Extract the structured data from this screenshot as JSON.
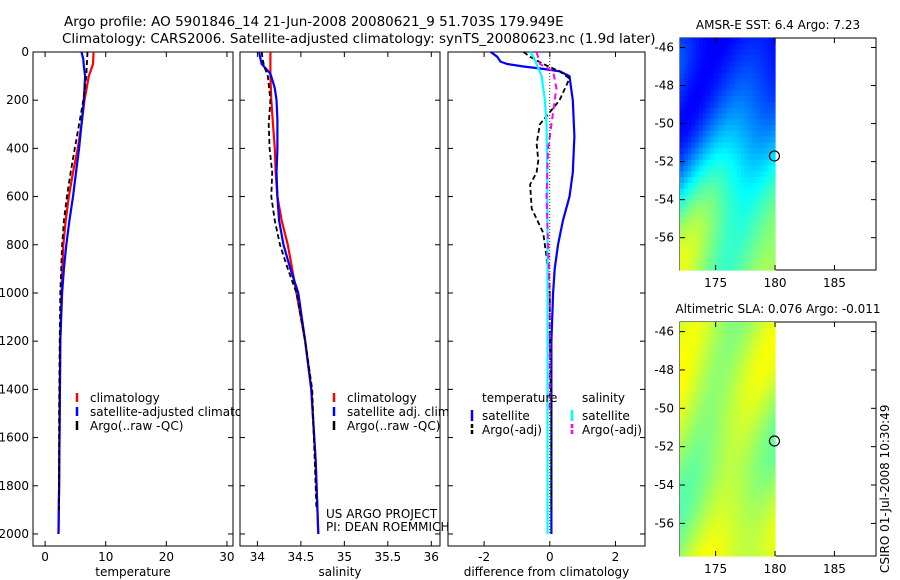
{
  "header": {
    "line1": "Argo profile: AO 5901846_14 21-Jun-2008 20080621_9 51.703S 179.949E",
    "line2": "Climatology: CARS2006. Satellite-adjusted climatology: synTS_20080623.nc (1.9d later)"
  },
  "credits": {
    "project": "US ARGO PROJECT",
    "pi": "PI: DEAN ROEMMICH",
    "stamp": "CSIRO 01-Jul-2008 10:30:49"
  },
  "colors": {
    "clim": "#ff0000",
    "sat": "#0000ff",
    "argo": "#000000",
    "sal_sat": "#00ffff",
    "sal_argo": "#ff00ff"
  },
  "chart_data": [
    {
      "id": "temperature",
      "type": "line",
      "xlabel": "temperature",
      "ylabel": "",
      "xlim": [
        -2,
        31
      ],
      "ylim": [
        2050,
        0
      ],
      "xticks": [
        0,
        10,
        20,
        30
      ],
      "yticks": [
        0,
        200,
        400,
        600,
        800,
        1000,
        1200,
        1400,
        1600,
        1800,
        2000
      ],
      "y_reversed": true,
      "legend": {
        "placement": "bottom-left",
        "entries": [
          {
            "label": "climatology",
            "color": "#ff0000"
          },
          {
            "label": "satellite-adjusted climatology",
            "color": "#0000ff"
          },
          {
            "label": "Argo(..raw -QC)",
            "color": "#000000"
          }
        ]
      },
      "series": [
        {
          "name": "climatology",
          "color": "#ff0000",
          "dash": "none",
          "width": 2.2,
          "x": [
            8.0,
            7.9,
            7.2,
            6.5,
            6.0,
            5.4,
            4.6,
            3.9,
            3.4,
            3.0,
            2.7,
            2.5,
            2.4,
            2.3,
            2.2
          ],
          "y": [
            0,
            50,
            100,
            200,
            300,
            400,
            500,
            600,
            700,
            800,
            1000,
            1200,
            1500,
            1800,
            2000
          ]
        },
        {
          "name": "satellite-adjusted climatology",
          "color": "#0000ff",
          "dash": "none",
          "width": 2.2,
          "x": [
            6.0,
            6.1,
            6.3,
            6.4,
            6.6,
            6.4,
            6.0,
            5.6,
            5.1,
            4.6,
            4.0,
            3.5,
            3.1,
            2.8,
            2.5,
            2.4,
            2.3,
            2.2
          ],
          "y": [
            0,
            10,
            30,
            60,
            100,
            200,
            300,
            400,
            500,
            600,
            700,
            800,
            900,
            1000,
            1200,
            1500,
            1800,
            2000
          ]
        },
        {
          "name": "Argo(..raw -QC)",
          "color": "#000000",
          "dash": "5,3",
          "width": 1.8,
          "x": [
            7.0,
            6.9,
            6.8,
            6.3,
            5.6,
            4.9,
            4.2,
            3.6,
            3.1,
            2.8,
            2.5,
            2.4,
            2.3,
            2.3
          ],
          "y": [
            0,
            50,
            100,
            200,
            300,
            400,
            500,
            600,
            700,
            800,
            1000,
            1200,
            1500,
            1900
          ]
        }
      ]
    },
    {
      "id": "salinity",
      "type": "line",
      "xlabel": "salinity",
      "ylabel": "",
      "xlim": [
        33.8,
        36.1
      ],
      "ylim": [
        2050,
        0
      ],
      "xticks": [
        34,
        34.5,
        35,
        35.5,
        36
      ],
      "yticks": [],
      "y_reversed": true,
      "legend": {
        "placement": "bottom-left",
        "entries": [
          {
            "label": "climatology",
            "color": "#ff0000"
          },
          {
            "label": "satellite adj. clim.",
            "color": "#0000ff"
          },
          {
            "label": "Argo(..raw -QC)",
            "color": "#000000"
          }
        ]
      },
      "series": [
        {
          "name": "climatology",
          "color": "#ff0000",
          "dash": "none",
          "width": 2.2,
          "x": [
            34.15,
            34.15,
            34.16,
            34.18,
            34.2,
            34.21,
            34.23,
            34.28,
            34.35,
            34.45,
            34.55,
            34.62,
            34.67,
            34.7
          ],
          "y": [
            0,
            100,
            200,
            300,
            400,
            500,
            600,
            700,
            800,
            1000,
            1200,
            1400,
            1700,
            2000
          ]
        },
        {
          "name": "satellite adj. clim.",
          "color": "#0000ff",
          "dash": "none",
          "width": 2.2,
          "x": [
            34.02,
            34.03,
            34.05,
            34.1,
            34.15,
            34.2,
            34.22,
            34.23,
            34.23,
            34.22,
            34.23,
            34.25,
            34.3,
            34.38,
            34.47,
            34.55,
            34.62,
            34.67,
            34.7
          ],
          "y": [
            0,
            20,
            50,
            70,
            90,
            150,
            200,
            280,
            400,
            500,
            600,
            700,
            800,
            900,
            1000,
            1200,
            1400,
            1700,
            2000
          ]
        },
        {
          "name": "Argo(..raw -QC)",
          "color": "#000000",
          "dash": "5,3",
          "width": 1.8,
          "x": [
            34.05,
            34.06,
            34.08,
            34.12,
            34.15,
            34.13,
            34.14,
            34.17,
            34.16,
            34.2,
            34.26,
            34.35,
            34.45,
            34.55,
            34.63,
            34.68
          ],
          "y": [
            0,
            30,
            60,
            100,
            200,
            300,
            400,
            500,
            600,
            700,
            800,
            900,
            1000,
            1200,
            1400,
            1900
          ]
        }
      ]
    },
    {
      "id": "difference",
      "type": "line",
      "xlabel": "difference from climatology",
      "ylabel": "",
      "xlim": [
        -3.1,
        2.9
      ],
      "ylim": [
        2050,
        0
      ],
      "xticks": [
        -2,
        0,
        2
      ],
      "yticks": [],
      "y_reversed": true,
      "zero_line": 0,
      "legend": {
        "placement": "bottom-center",
        "columns": [
          {
            "heading": "temperature",
            "entries": [
              {
                "label": "satellite",
                "color": "#0000ff",
                "dash": "none"
              },
              {
                "label": "Argo(-adj)",
                "color": "#000000",
                "dash": "5,3"
              }
            ]
          },
          {
            "heading": "salinity",
            "entries": [
              {
                "label": "satellite",
                "color": "#00ffff",
                "dash": "none"
              },
              {
                "label": "Argo(-adj)",
                "color": "#ff00ff",
                "dash": "5,3"
              }
            ]
          }
        ]
      },
      "series": [
        {
          "name": "temperature satellite",
          "color": "#0000ff",
          "dash": "none",
          "width": 2.2,
          "x": [
            -1.8,
            -1.6,
            -1.5,
            -1.3,
            -0.8,
            -0.2,
            0.3,
            0.6,
            0.65,
            0.7,
            0.75,
            0.7,
            0.6,
            0.4,
            0.25,
            0.15,
            0.1,
            0.05,
            0.05,
            0.05
          ],
          "y": [
            0,
            20,
            40,
            50,
            60,
            70,
            80,
            100,
            150,
            200,
            350,
            500,
            600,
            700,
            800,
            900,
            1000,
            1200,
            1600,
            2000
          ]
        },
        {
          "name": "temperature Argo(-adj)",
          "color": "#000000",
          "dash": "5,3",
          "width": 1.8,
          "x": [
            -0.8,
            -0.6,
            -0.2,
            0.3,
            0.6,
            0.3,
            -0.3,
            -0.4,
            -0.35,
            -0.4,
            -0.6,
            -0.55,
            -0.2,
            -0.1,
            0.0,
            0.0,
            0.05,
            0.05
          ],
          "y": [
            0,
            20,
            50,
            80,
            110,
            200,
            300,
            380,
            450,
            500,
            550,
            650,
            750,
            850,
            1000,
            1200,
            1500,
            1900
          ]
        },
        {
          "name": "salinity satellite",
          "color": "#00ffff",
          "dash": "none",
          "width": 2.2,
          "x": [
            -0.6,
            -0.5,
            -0.4,
            -0.25,
            -0.15,
            -0.1,
            -0.08,
            -0.07,
            -0.07,
            -0.07
          ],
          "y": [
            0,
            20,
            50,
            100,
            200,
            300,
            500,
            800,
            1200,
            2000
          ]
        },
        {
          "name": "salinity Argo(-adj)",
          "color": "#ff00ff",
          "dash": "6,4",
          "width": 2.0,
          "x": [
            -0.4,
            -0.3,
            0.1,
            0.2,
            0.1,
            -0.05,
            -0.1,
            -0.05,
            0.0,
            0.0
          ],
          "y": [
            0,
            50,
            80,
            150,
            250,
            400,
            600,
            800,
            1000,
            1500
          ]
        },
        {
          "name": "zero reference",
          "color": "#000000",
          "dash": "1,2",
          "width": 0.8,
          "x": [
            0,
            0
          ],
          "y": [
            0,
            2000
          ]
        }
      ]
    },
    {
      "id": "sst-map",
      "type": "heatmap",
      "title": "AMSR-E SST: 6.4 Argo: 7.23",
      "xlim": [
        172,
        188.5
      ],
      "ylim": [
        -57.7,
        -45.5
      ],
      "xticks": [
        175,
        180,
        185
      ],
      "yticks": [
        -46,
        -48,
        -50,
        -52,
        -54,
        -56
      ],
      "xticklabels": [
        "175",
        "180",
        "185"
      ],
      "yticklabels": [
        "-46",
        "-48",
        "-50",
        "-52",
        "-54",
        "-56"
      ],
      "data_xlim": [
        172,
        180
      ],
      "marker": {
        "lon": 179.949,
        "lat": -51.703
      },
      "seed": 11,
      "value_range": [
        0.15,
        0.5
      ],
      "trend": [
        0.05,
        -0.4
      ]
    },
    {
      "id": "sla-map",
      "type": "heatmap",
      "title": "Altimetric SLA: 0.076 Argo: -0.011",
      "xlim": [
        172,
        188.5
      ],
      "ylim": [
        -57.7,
        -45.5
      ],
      "xticks": [
        175,
        180,
        185
      ],
      "yticks": [
        -46,
        -48,
        -50,
        -52,
        -54,
        -56
      ],
      "xticklabels": [
        "175",
        "180",
        "185"
      ],
      "yticklabels": [
        "-46",
        "-48",
        "-50",
        "-52",
        "-54",
        "-56"
      ],
      "data_xlim": [
        172,
        180
      ],
      "marker": {
        "lon": 179.949,
        "lat": -51.703
      },
      "seed": 5,
      "value_range": [
        0.38,
        0.72
      ],
      "trend": [
        0.0,
        0.0
      ]
    }
  ]
}
